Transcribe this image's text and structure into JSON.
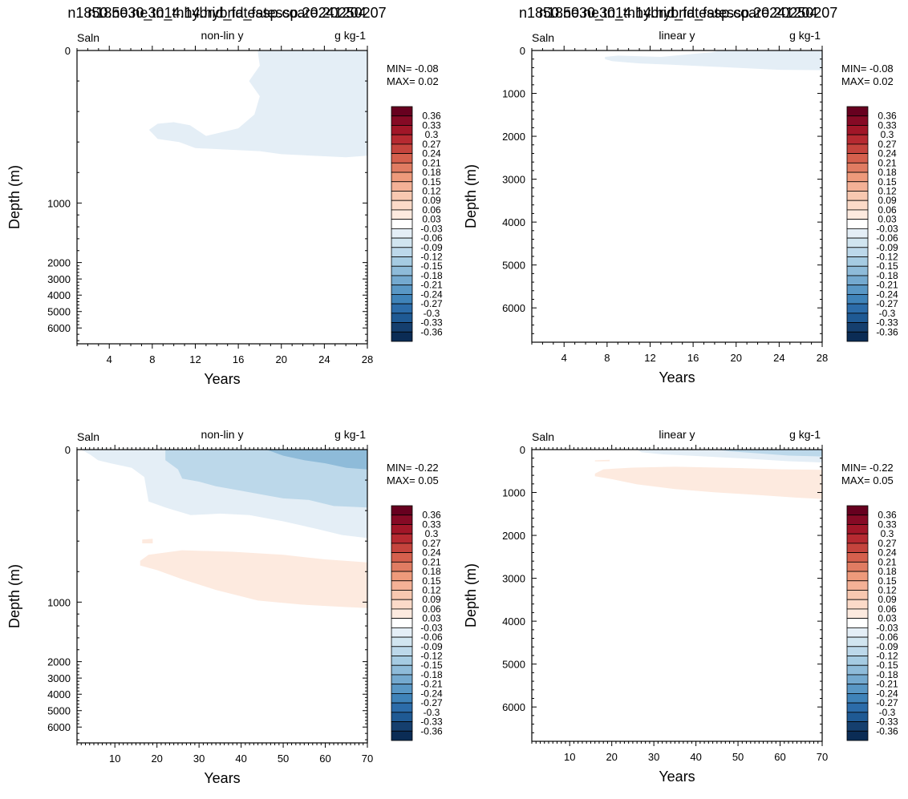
{
  "colorbar": {
    "labels": [
      "0.36",
      "0.33",
      "0.3",
      "0.27",
      "0.24",
      "0.21",
      "0.18",
      "0.15",
      "0.12",
      "0.09",
      "0.06",
      "0.03",
      "-0.03",
      "-0.06",
      "-0.09",
      "-0.12",
      "-0.15",
      "-0.18",
      "-0.21",
      "-0.24",
      "-0.27",
      "-0.3",
      "-0.33",
      "-0.36"
    ],
    "colors": [
      "#67001f",
      "#860a25",
      "#a11628",
      "#b62a31",
      "#c5443d",
      "#d5604d",
      "#e07c62",
      "#ee9a7b",
      "#f4b196",
      "#f8c8b0",
      "#fbdac8",
      "#fdeadf",
      "#ffffff",
      "#e4eef6",
      "#d1e5f0",
      "#bcd8ea",
      "#a5cbe2",
      "#8ebbd9",
      "#74a9cf",
      "#5997c5",
      "#3f83b9",
      "#2c6ca9",
      "#1f5a94",
      "#153f6e",
      "#0b2c55"
    ]
  },
  "chart_data": [
    {
      "type": "heatmap",
      "title": "n1850.ne30_tn14.hybrid_fatessp.coare.20250207",
      "left_label": "Saln",
      "center_label": "non-lin y",
      "right_label": "g kg-1",
      "xlabel": "Years",
      "ylabel": "Depth (m)",
      "x_ticks": [
        4,
        8,
        12,
        16,
        20,
        24,
        28
      ],
      "xlim": [
        1,
        28
      ],
      "y_ticks": [
        0,
        1000,
        2000,
        3000,
        4000,
        5000,
        6000
      ],
      "y_scale": "non-linear",
      "y_reversed": true,
      "min_label": "MIN= -0.08",
      "max_label": "MAX=  0.02",
      "features": [
        {
          "level": -0.03,
          "region": "anomaly mostly in upper ~700 m, years 8-28"
        }
      ]
    },
    {
      "type": "heatmap",
      "title": "n1850.ne30_tn14.hybrid_fatessp.coare.20250207",
      "left_label": "Saln",
      "center_label": "linear y",
      "right_label": "g kg-1",
      "xlabel": "Years",
      "ylabel": "Depth (m)",
      "x_ticks": [
        4,
        8,
        12,
        16,
        20,
        24,
        28
      ],
      "xlim": [
        1,
        28
      ],
      "y_ticks": [
        0,
        1000,
        2000,
        3000,
        4000,
        5000,
        6000
      ],
      "ylim": [
        6800,
        0
      ],
      "y_scale": "linear",
      "min_label": "MIN= -0.08",
      "max_label": "MAX=  0.02",
      "features": [
        {
          "level": -0.03,
          "region": "shallow layer 0-450 m, years 8-28"
        }
      ]
    },
    {
      "type": "heatmap",
      "title": "n1850.ne30_tn14.hybrid_fatessp.20241204",
      "left_label": "Saln",
      "center_label": "non-lin y",
      "right_label": "g kg-1",
      "xlabel": "Years",
      "ylabel": "Depth (m)",
      "x_ticks": [
        10,
        20,
        30,
        40,
        50,
        60,
        70
      ],
      "xlim": [
        1,
        70
      ],
      "y_ticks": [
        0,
        1000,
        2000,
        3000,
        4000,
        5000,
        6000
      ],
      "y_scale": "non-linear",
      "y_reversed": true,
      "min_label": "MIN= -0.22",
      "max_label": "MAX=  0.05",
      "features": [
        {
          "level": -0.03,
          "region": "upper layer, deepening with time"
        },
        {
          "level": -0.09,
          "region": "upper layer after year 25"
        },
        {
          "level": -0.15,
          "region": "surface, years 45-70"
        },
        {
          "level": 0.03,
          "region": "intermediate depth band, years 17-70"
        }
      ]
    },
    {
      "type": "heatmap",
      "title": "n1850.ne30_tn14.hybrid_fatessp.20241204",
      "left_label": "Saln",
      "center_label": "linear y",
      "right_label": "g kg-1",
      "xlabel": "Years",
      "ylabel": "Depth (m)",
      "x_ticks": [
        10,
        20,
        30,
        40,
        50,
        60,
        70
      ],
      "xlim": [
        1,
        70
      ],
      "y_ticks": [
        0,
        1000,
        2000,
        3000,
        4000,
        5000,
        6000
      ],
      "ylim": [
        6800,
        0
      ],
      "y_scale": "linear",
      "min_label": "MIN= -0.22",
      "max_label": "MAX=  0.05",
      "features": [
        {
          "level": -0.03,
          "region": "surface 0-300 m"
        },
        {
          "level": 0.03,
          "region": "band 500-1150 m, years 17-70"
        }
      ]
    }
  ]
}
